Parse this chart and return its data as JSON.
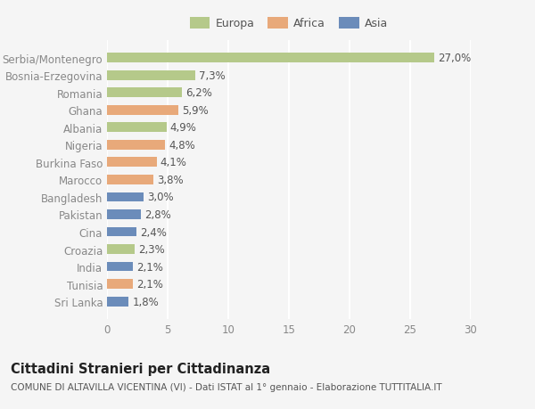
{
  "categories": [
    "Sri Lanka",
    "Tunisia",
    "India",
    "Croazia",
    "Cina",
    "Pakistan",
    "Bangladesh",
    "Marocco",
    "Burkina Faso",
    "Nigeria",
    "Albania",
    "Ghana",
    "Romania",
    "Bosnia-Erzegovina",
    "Serbia/Montenegro"
  ],
  "values": [
    1.8,
    2.1,
    2.1,
    2.3,
    2.4,
    2.8,
    3.0,
    3.8,
    4.1,
    4.8,
    4.9,
    5.9,
    6.2,
    7.3,
    27.0
  ],
  "labels": [
    "1,8%",
    "2,1%",
    "2,1%",
    "2,3%",
    "2,4%",
    "2,8%",
    "3,0%",
    "3,8%",
    "4,1%",
    "4,8%",
    "4,9%",
    "5,9%",
    "6,2%",
    "7,3%",
    "27,0%"
  ],
  "colors": [
    "#6b8cba",
    "#e8a97a",
    "#6b8cba",
    "#b5c98a",
    "#6b8cba",
    "#6b8cba",
    "#6b8cba",
    "#e8a97a",
    "#e8a97a",
    "#e8a97a",
    "#b5c98a",
    "#e8a97a",
    "#b5c98a",
    "#b5c98a",
    "#b5c98a"
  ],
  "legend_labels": [
    "Europa",
    "Africa",
    "Asia"
  ],
  "legend_colors": [
    "#b5c98a",
    "#e8a97a",
    "#6b8cba"
  ],
  "xlim": [
    0,
    30
  ],
  "xticks": [
    0,
    5,
    10,
    15,
    20,
    25,
    30
  ],
  "title": "Cittadini Stranieri per Cittadinanza",
  "subtitle": "COMUNE DI ALTAVILLA VICENTINA (VI) - Dati ISTAT al 1° gennaio - Elaborazione TUTTITALIA.IT",
  "bg_color": "#f5f5f5",
  "bar_height": 0.55,
  "grid_color": "#ffffff",
  "label_fontsize": 8.5,
  "tick_fontsize": 8.5,
  "title_fontsize": 10.5,
  "subtitle_fontsize": 7.5
}
